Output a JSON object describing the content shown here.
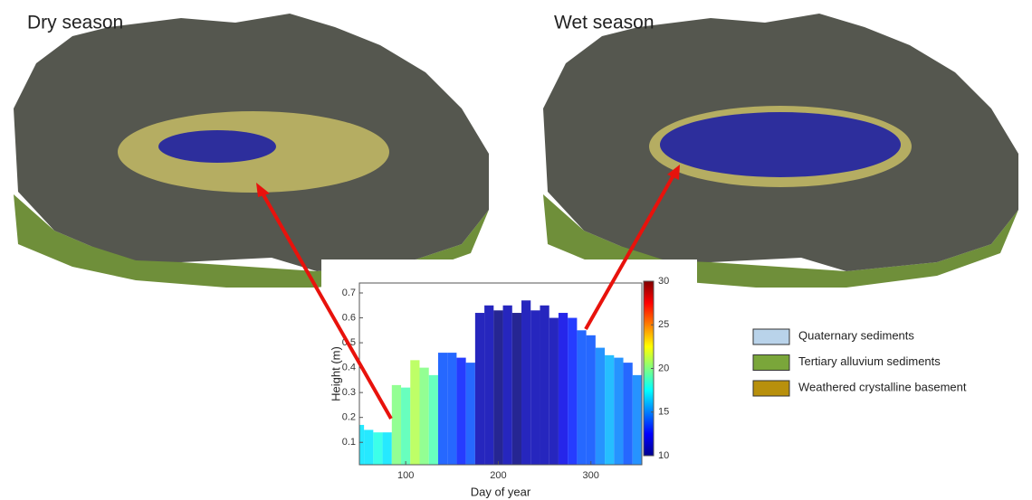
{
  "panels": {
    "dry_title": "Dry season",
    "wet_title": "Wet season"
  },
  "legend": [
    {
      "label": "Quaternary sediments",
      "color": "#b9d3ea"
    },
    {
      "label": "Tertiary alluvium sediments",
      "color": "#7aa63a"
    },
    {
      "label": "Weathered crystalline basement",
      "color": "#b8900c"
    }
  ],
  "chart_data": {
    "type": "bar",
    "xlabel": "Day of year",
    "ylabel": "Height (m)",
    "x": [
      50,
      60,
      70,
      80,
      90,
      100,
      110,
      120,
      130,
      140,
      150,
      160,
      170,
      180,
      190,
      200,
      210,
      220,
      230,
      240,
      250,
      260,
      270,
      280,
      290,
      300,
      310,
      320,
      330,
      340,
      350
    ],
    "values": [
      0.17,
      0.15,
      0.14,
      0.14,
      0.33,
      0.32,
      0.43,
      0.4,
      0.37,
      0.46,
      0.46,
      0.44,
      0.42,
      0.62,
      0.65,
      0.63,
      0.65,
      0.62,
      0.67,
      0.63,
      0.65,
      0.6,
      0.62,
      0.6,
      0.55,
      0.53,
      0.48,
      0.45,
      0.44,
      0.42,
      0.37
    ],
    "color_values": [
      17,
      17,
      18,
      17,
      20,
      19,
      21,
      20,
      19,
      14,
      14,
      13,
      14,
      11,
      11,
      10,
      11,
      10,
      11,
      11,
      11,
      11,
      12,
      13,
      14,
      14,
      15,
      16,
      15,
      14,
      15
    ],
    "xlim": [
      50,
      355
    ],
    "xticks": [
      100,
      200,
      300
    ],
    "ylim": [
      0.01,
      0.74
    ],
    "yticks": [
      0.1,
      0.2,
      0.3,
      0.4,
      0.5,
      0.6,
      0.7
    ],
    "clim": [
      10,
      30
    ],
    "cticks": [
      10,
      15,
      20,
      25,
      30
    ],
    "colormap": "jet"
  }
}
